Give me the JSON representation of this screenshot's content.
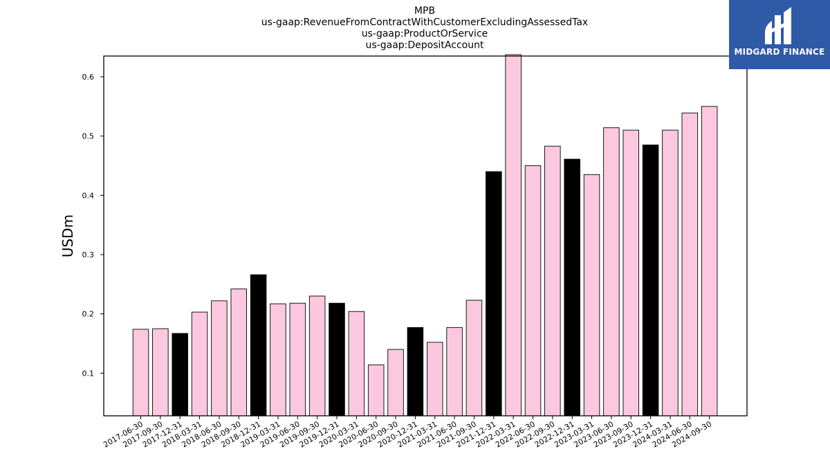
{
  "chart_data": {
    "type": "bar",
    "title_lines": [
      "MPB",
      "us-gaap:RevenueFromContractWithCustomerExcludingAssessedTax",
      "us-gaap:ProductOrService",
      "us-gaap:DepositAccount"
    ],
    "ylabel": "USDm",
    "xlabel": "",
    "ylim": [
      0.028,
      0.635
    ],
    "yticks": [
      0.1,
      0.2,
      0.3,
      0.4,
      0.5,
      0.6
    ],
    "ytick_labels": [
      "0.1",
      "0.2",
      "0.3",
      "0.4",
      "0.5",
      "0.6"
    ],
    "categories": [
      "2017-06-30",
      "2017-09-30",
      "2017-12-31",
      "2018-03-31",
      "2018-06-30",
      "2018-09-30",
      "2018-12-31",
      "2019-03-31",
      "2019-06-30",
      "2019-09-30",
      "2019-12-31",
      "2020-03-31",
      "2020-06-30",
      "2020-09-30",
      "2020-12-31",
      "2021-03-31",
      "2021-06-30",
      "2021-09-30",
      "2021-12-31",
      "2022-03-31",
      "2022-06-30",
      "2022-09-30",
      "2022-12-31",
      "2023-03-31",
      "2023-06-30",
      "2023-09-30",
      "2023-12-31",
      "2024-03-31",
      "2024-06-30",
      "2024-09-30"
    ],
    "values": [
      0.174,
      0.175,
      0.167,
      0.203,
      0.222,
      0.242,
      0.266,
      0.217,
      0.218,
      0.23,
      0.218,
      0.204,
      0.114,
      0.14,
      0.177,
      0.152,
      0.177,
      0.223,
      0.44,
      0.64,
      0.45,
      0.483,
      0.461,
      0.435,
      0.514,
      0.51,
      0.485,
      0.51,
      0.539,
      0.55
    ],
    "highlight_categories": [
      "2017-12-31",
      "2018-12-31",
      "2019-12-31",
      "2020-12-31",
      "2021-12-31",
      "2022-12-31",
      "2023-12-31"
    ],
    "colors": {
      "bar": "#fbc8e0",
      "bar_highlight": "#000000",
      "bar_edge": "#000000",
      "axis": "#000000"
    },
    "grid": false
  },
  "logo": {
    "text": "MIDGARD FINANCE",
    "background": "#2f5aa8",
    "foreground": "#ffffff"
  }
}
